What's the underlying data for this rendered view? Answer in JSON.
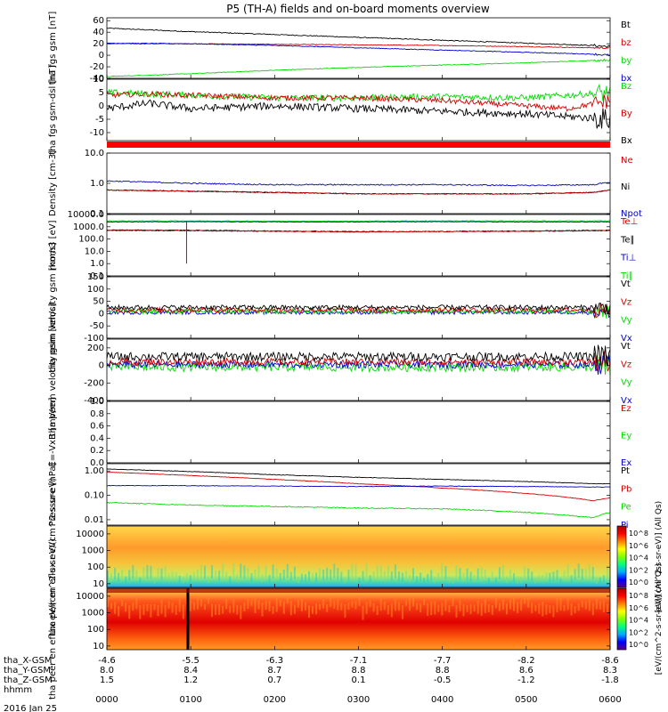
{
  "title": "P5 (TH-A) fields and on-board moments overview",
  "colors": {
    "black": "#000000",
    "red": "#d40000",
    "green": "#00dd00",
    "blue": "#0000cc",
    "colorbar": [
      "#5a008a",
      "#0000ff",
      "#00aaff",
      "#00ff80",
      "#80ff00",
      "#ffff00",
      "#ff8000",
      "#ff0000",
      "#aa0000"
    ]
  },
  "time_axis": {
    "ticks_hhmm": [
      "0000",
      "0100",
      "0200",
      "0300",
      "0400",
      "0500",
      "0600"
    ],
    "rows": [
      {
        "label": "tha_X-GSM",
        "values": [
          "-4.6",
          "-5.5",
          "-6.3",
          "-7.1",
          "-7.7",
          "-8.2",
          "-8.6"
        ]
      },
      {
        "label": "tha_Y-GSM",
        "values": [
          "8.0",
          "8.4",
          "8.7",
          "8.8",
          "8.8",
          "8.6",
          "8.3"
        ]
      },
      {
        "label": "tha_Z-GSM",
        "values": [
          "1.5",
          "1.2",
          "0.7",
          "0.1",
          "-0.5",
          "-1.2",
          "-1.8"
        ]
      },
      {
        "label": "hhmm",
        "values": []
      }
    ],
    "date": "2016 Jan 25"
  },
  "chart_data": [
    {
      "type": "line",
      "ylabel": "tha fgs gsm [nT]",
      "scale": "linear",
      "ylim": [
        -40,
        65
      ],
      "ticks": [
        {
          "v": -40,
          "l": "-40"
        },
        {
          "v": -20,
          "l": "-20"
        },
        {
          "v": 0,
          "l": "0"
        },
        {
          "v": 20,
          "l": "20"
        },
        {
          "v": 40,
          "l": "40"
        },
        {
          "v": 60,
          "l": "60"
        }
      ],
      "series": [
        {
          "name": "Bt",
          "color": "#000000",
          "x": [
            0,
            1,
            2,
            3,
            4,
            5,
            5.8,
            6
          ],
          "values": [
            47,
            41,
            36,
            31,
            26,
            21,
            17,
            15
          ],
          "noise": 0.8
        },
        {
          "name": "bz",
          "color": "#d40000",
          "x": [
            0,
            1,
            2,
            3,
            4,
            5,
            5.8,
            6
          ],
          "values": [
            20,
            20,
            19,
            18,
            17,
            15,
            13,
            13
          ],
          "noise": 0.6
        },
        {
          "name": "by",
          "color": "#00dd00",
          "x": [
            0,
            1,
            2,
            3,
            4,
            5,
            5.8,
            6
          ],
          "values": [
            -37,
            -32,
            -26,
            -21,
            -17,
            -13,
            -9,
            -8
          ],
          "noise": 0.6
        },
        {
          "name": "bx",
          "color": "#0000cc",
          "x": [
            0,
            1,
            2,
            3,
            4,
            5,
            5.8,
            6
          ],
          "values": [
            21,
            20,
            17,
            13,
            9,
            5,
            2,
            0
          ],
          "noise": 0.6
        }
      ],
      "legend": [
        {
          "t": "Bt",
          "c": "#000000"
        },
        {
          "t": "bz",
          "c": "#d40000"
        },
        {
          "t": "by",
          "c": "#00dd00"
        },
        {
          "t": "bx",
          "c": "#0000cc"
        }
      ]
    },
    {
      "type": "line",
      "ylabel": "tha fgs gsm-dsl [nT]",
      "scale": "linear",
      "ylim": [
        -13,
        10
      ],
      "ticks": [
        {
          "v": -10,
          "l": "-10"
        },
        {
          "v": -5,
          "l": "-5"
        },
        {
          "v": 0,
          "l": "0"
        },
        {
          "v": 5,
          "l": "5"
        },
        {
          "v": 10,
          "l": "10"
        }
      ],
      "series": [
        {
          "name": "Bz",
          "color": "#00dd00",
          "x": [
            0,
            0.5,
            1,
            2,
            3,
            4,
            5,
            5.5,
            6
          ],
          "values": [
            5,
            4.5,
            4,
            3,
            3,
            3.5,
            3,
            4,
            5
          ],
          "noise": 1.2
        },
        {
          "name": "By",
          "color": "#d40000",
          "x": [
            0,
            0.5,
            1,
            2,
            3,
            4,
            5,
            5.5,
            6
          ],
          "values": [
            4,
            4.5,
            4,
            3,
            3,
            2,
            0,
            -1,
            2
          ],
          "noise": 1.0
        },
        {
          "name": "Bx",
          "color": "#000000",
          "x": [
            0,
            0.5,
            1,
            2,
            3,
            4,
            5,
            5.5,
            6
          ],
          "values": [
            -1,
            1,
            -1,
            0,
            -1,
            -2,
            -3,
            -4,
            -5
          ],
          "noise": 1.4
        }
      ],
      "legend": [
        {
          "t": "Bz",
          "c": "#00dd00"
        },
        {
          "t": "By",
          "c": "#d40000"
        },
        {
          "t": "Bx",
          "c": "#000000"
        }
      ]
    },
    {
      "type": "line",
      "ylabel": "Density [cm-3]",
      "scale": "log",
      "ylim": [
        0.1,
        10
      ],
      "ticks": [
        {
          "v": 0.1,
          "l": "0.1"
        },
        {
          "v": 1,
          "l": "1.0"
        },
        {
          "v": 10,
          "l": "10.0"
        }
      ],
      "series": [
        {
          "name": "Npot",
          "color": "#0000cc",
          "x": [
            0,
            1,
            2,
            3,
            4,
            5,
            5.8,
            6
          ],
          "values": [
            1.2,
            1.0,
            0.9,
            0.9,
            0.9,
            0.85,
            0.9,
            1.1
          ],
          "noise": 0.02
        },
        {
          "name": "Ni",
          "color": "#000000",
          "x": [
            0,
            1,
            2,
            3,
            4,
            5,
            5.8,
            6
          ],
          "values": [
            0.6,
            0.55,
            0.5,
            0.45,
            0.45,
            0.45,
            0.5,
            0.6
          ],
          "noise": 0.015
        },
        {
          "name": "Ne",
          "color": "#d40000",
          "x": [
            0,
            1,
            2,
            3,
            4,
            5,
            5.8,
            6
          ],
          "values": [
            0.6,
            0.55,
            0.5,
            0.45,
            0.45,
            0.45,
            0.5,
            0.6
          ],
          "noise": 0.015
        }
      ],
      "legend": [
        {
          "t": "Ne",
          "c": "#d40000"
        },
        {
          "t": "Ni",
          "c": "#000000"
        },
        {
          "t": "Npot",
          "c": "#0000cc"
        }
      ]
    },
    {
      "type": "line",
      "ylabel": "mom3 [eV]",
      "scale": "log",
      "ylim": [
        0.1,
        10000
      ],
      "ticks": [
        {
          "v": 0.1,
          "l": "0.1"
        },
        {
          "v": 1,
          "l": "1.0"
        },
        {
          "v": 10,
          "l": "10.0"
        },
        {
          "v": 100,
          "l": "100.0"
        },
        {
          "v": 1000,
          "l": "1000.0"
        },
        {
          "v": 10000,
          "l": "10000.0"
        }
      ],
      "series": [
        {
          "name": "Ti∥",
          "color": "#00dd00",
          "x": [
            0,
            1,
            2,
            3,
            4,
            5,
            6
          ],
          "values": [
            3000,
            3000,
            2900,
            2900,
            3000,
            3000,
            3000
          ],
          "noise": 0.02
        },
        {
          "name": "Ti⊥",
          "color": "#0000cc",
          "x": [
            0,
            1,
            2,
            3,
            4,
            5,
            6
          ],
          "values": [
            2500,
            2600,
            2500,
            2500,
            2600,
            2500,
            2500
          ],
          "noise": 0.02
        },
        {
          "name": "Te∥",
          "color": "#000000",
          "x": [
            0,
            1,
            2,
            3,
            4,
            5,
            6
          ],
          "values": [
            550,
            520,
            450,
            400,
            420,
            450,
            520
          ],
          "noise": 0.03
        },
        {
          "name": "Te⊥",
          "color": "#d40000",
          "x": [
            0,
            1,
            2,
            3,
            4,
            5,
            6
          ],
          "values": [
            500,
            480,
            420,
            380,
            400,
            420,
            480
          ],
          "noise": 0.03
        }
      ],
      "legend": [
        {
          "t": "Te⊥",
          "c": "#d40000"
        },
        {
          "t": "Te∥",
          "c": "#000000"
        },
        {
          "t": "Ti⊥",
          "c": "#0000cc"
        },
        {
          "t": "Ti∥",
          "c": "#00dd00"
        }
      ]
    },
    {
      "type": "line",
      "ylabel": "tha peim velocity gsm [km/s]",
      "scale": "linear",
      "ylim": [
        -100,
        150
      ],
      "ticks": [
        {
          "v": -100,
          "l": "-100"
        },
        {
          "v": -50,
          "l": "-50"
        },
        {
          "v": 0,
          "l": "0"
        },
        {
          "v": 50,
          "l": "50"
        },
        {
          "v": 100,
          "l": "100"
        },
        {
          "v": 150,
          "l": "150"
        }
      ],
      "series": [
        {
          "name": "Vx",
          "color": "#0000cc",
          "x": [
            0,
            6
          ],
          "values": [
            5,
            5
          ],
          "noise": 8
        },
        {
          "name": "Vy",
          "color": "#00dd00",
          "x": [
            0,
            6
          ],
          "values": [
            10,
            10
          ],
          "noise": 10
        },
        {
          "name": "Vz",
          "color": "#d40000",
          "x": [
            0,
            6
          ],
          "values": [
            15,
            15
          ],
          "noise": 10
        },
        {
          "name": "Vt",
          "color": "#000000",
          "x": [
            0,
            6
          ],
          "values": [
            25,
            25
          ],
          "noise": 10
        }
      ],
      "legend": [
        {
          "t": "Vt",
          "c": "#000000"
        },
        {
          "t": "Vz",
          "c": "#d40000"
        },
        {
          "t": "Vy",
          "c": "#00dd00"
        },
        {
          "t": "Vx",
          "c": "#0000cc"
        }
      ]
    },
    {
      "type": "line",
      "ylabel": "tha peem velocity gsm [km/s]",
      "scale": "linear",
      "ylim": [
        -400,
        300
      ],
      "ticks": [
        {
          "v": -400,
          "l": "-400"
        },
        {
          "v": -200,
          "l": "-200"
        },
        {
          "v": 0,
          "l": "0"
        },
        {
          "v": 200,
          "l": "200"
        }
      ],
      "series": [
        {
          "name": "Vy",
          "color": "#00dd00",
          "x": [
            0,
            6
          ],
          "values": [
            -20,
            -20
          ],
          "noise": 50
        },
        {
          "name": "Vx",
          "color": "#0000cc",
          "x": [
            0,
            6
          ],
          "values": [
            10,
            10
          ],
          "noise": 40
        },
        {
          "name": "Vz",
          "color": "#d40000",
          "x": [
            0,
            6
          ],
          "values": [
            40,
            40
          ],
          "noise": 40
        },
        {
          "name": "Vt",
          "color": "#000000",
          "x": [
            0,
            6
          ],
          "values": [
            100,
            100
          ],
          "noise": 50
        }
      ],
      "legend": [
        {
          "t": "Vt",
          "c": "#000000"
        },
        {
          "t": "Vz",
          "c": "#d40000"
        },
        {
          "t": "Vy",
          "c": "#00dd00"
        },
        {
          "t": "Vx",
          "c": "#0000cc"
        }
      ]
    },
    {
      "type": "line",
      "ylabel": "E=-VxB [mV/m]",
      "scale": "linear",
      "ylim": [
        0,
        1
      ],
      "ticks": [
        {
          "v": 0,
          "l": "0.0"
        },
        {
          "v": 0.2,
          "l": "0.2"
        },
        {
          "v": 0.4,
          "l": "0.4"
        },
        {
          "v": 0.6,
          "l": "0.6"
        },
        {
          "v": 0.8,
          "l": "0.8"
        },
        {
          "v": 1.0,
          "l": "1.0"
        }
      ],
      "series": [],
      "legend": [
        {
          "t": "Ez",
          "c": "#d40000"
        },
        {
          "t": "Ey",
          "c": "#00dd00"
        },
        {
          "t": "Ex",
          "c": "#0000cc"
        }
      ]
    },
    {
      "type": "line",
      "ylabel": "Pressure [nPa]",
      "scale": "log",
      "ylim": [
        0.006,
        2
      ],
      "ticks": [
        {
          "v": 0.01,
          "l": "0.01"
        },
        {
          "v": 0.1,
          "l": "0.10"
        },
        {
          "v": 1,
          "l": "1.00"
        }
      ],
      "series": [
        {
          "name": "Pt",
          "color": "#000000",
          "x": [
            0,
            1,
            2,
            3,
            4,
            5,
            5.8,
            6
          ],
          "values": [
            1.2,
            0.95,
            0.7,
            0.55,
            0.45,
            0.37,
            0.3,
            0.3
          ],
          "noise": 0.01
        },
        {
          "name": "Pb",
          "color": "#d40000",
          "x": [
            0,
            1,
            2,
            3,
            4,
            5,
            5.8,
            6
          ],
          "values": [
            0.9,
            0.65,
            0.45,
            0.3,
            0.2,
            0.12,
            0.06,
            0.08
          ],
          "noise": 0.01
        },
        {
          "name": "Pi",
          "color": "#0000cc",
          "x": [
            0,
            1,
            2,
            3,
            4,
            5,
            5.8,
            6
          ],
          "values": [
            0.25,
            0.25,
            0.24,
            0.23,
            0.24,
            0.23,
            0.22,
            0.22
          ],
          "noise": 0.01
        },
        {
          "name": "Pe",
          "color": "#00dd00",
          "x": [
            0,
            1,
            2,
            3,
            4,
            5,
            5.8,
            6
          ],
          "values": [
            0.05,
            0.04,
            0.035,
            0.03,
            0.028,
            0.02,
            0.012,
            0.02
          ],
          "noise": 0.02
        }
      ],
      "legend": [
        {
          "t": "Pt",
          "c": "#000000"
        },
        {
          "t": "Pb",
          "c": "#d40000"
        },
        {
          "t": "Pe",
          "c": "#00dd00"
        },
        {
          "t": "Pi",
          "c": "#0000cc"
        }
      ]
    },
    {
      "type": "heatmap",
      "ylabel": "tha peir en eflux eV/(cm^2-s-sr-eV)",
      "scale": "log",
      "ylim": [
        6,
        30000
      ],
      "ticks": [
        {
          "v": 10,
          "l": "10"
        },
        {
          "v": 100,
          "l": "100"
        },
        {
          "v": 1000,
          "l": "1000"
        },
        {
          "v": 10000,
          "l": "10000"
        }
      ],
      "colorbar": {
        "label": "[eV/(cm^2-s-sr-eV)] (All Qs)",
        "ticks": [
          "10^8",
          "10^6",
          "10^4",
          "10^2",
          "10^0"
        ]
      }
    },
    {
      "type": "heatmap",
      "ylabel": "tha peer en eflux eV/(cm^2-s-sr-eV)",
      "scale": "log",
      "ylim": [
        6,
        30000
      ],
      "ticks": [
        {
          "v": 10,
          "l": "10"
        },
        {
          "v": 100,
          "l": "100"
        },
        {
          "v": 1000,
          "l": "1000"
        },
        {
          "v": 10000,
          "l": "10000"
        }
      ],
      "colorbar": {
        "label": "[eV/(cm^2-s-sr-eV)] (All Qs)",
        "ticks": [
          "10^8",
          "10^6",
          "10^4",
          "10^2",
          "10^0"
        ]
      }
    }
  ]
}
